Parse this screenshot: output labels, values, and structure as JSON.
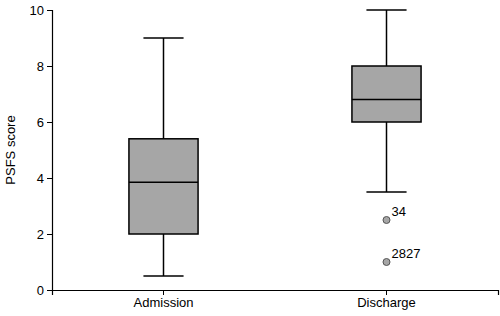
{
  "chart_data": {
    "type": "box",
    "y_label": "PSFS score",
    "categories": [
      "Admission",
      "Discharge"
    ],
    "boxes": [
      {
        "min": 0.5,
        "q1": 2.0,
        "median": 3.85,
        "q3": 5.4,
        "max": 9.0,
        "outliers": []
      },
      {
        "min": 3.5,
        "q1": 6.0,
        "median": 6.8,
        "q3": 8.0,
        "max": 10.0,
        "outliers": [
          {
            "value": 2.5,
            "label": "34"
          },
          {
            "value": 1.0,
            "label": "2827"
          }
        ]
      }
    ],
    "color": "#a6a6a6",
    "ylim": [
      0,
      10
    ],
    "yticks": [
      0,
      2,
      4,
      6,
      8,
      10
    ],
    "grid": false
  }
}
